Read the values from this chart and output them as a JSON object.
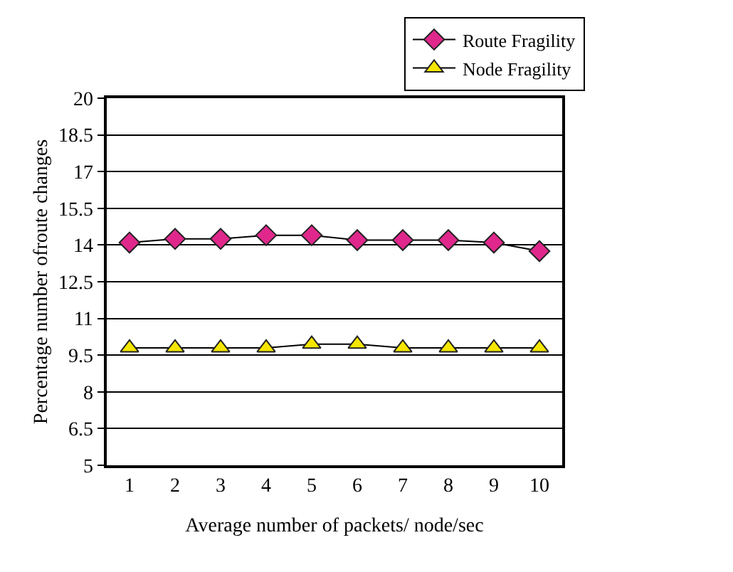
{
  "chart_data": {
    "type": "line",
    "xlabel": "Average number of packets/ node/sec",
    "ylabel": "Percentage number ofroute changes",
    "categories": [
      "1",
      "2",
      "3",
      "4",
      "5",
      "6",
      "7",
      "8",
      "9",
      "10"
    ],
    "series": [
      {
        "name": "Route Fragility",
        "color": "#e0288c",
        "marker": "diamond",
        "values": [
          14.1,
          14.25,
          14.25,
          14.4,
          14.4,
          14.2,
          14.2,
          14.2,
          14.1,
          13.75
        ]
      },
      {
        "name": "Node Fragility",
        "color": "#f5e600",
        "marker": "triangle",
        "values": [
          9.8,
          9.8,
          9.8,
          9.8,
          9.95,
          9.95,
          9.8,
          9.8,
          9.8,
          9.8
        ]
      }
    ],
    "ylim": [
      5,
      20
    ],
    "yticks": [
      5,
      6.5,
      8,
      9.5,
      11,
      12.5,
      14,
      15.5,
      17,
      18.5,
      20
    ],
    "grid": "y",
    "legend": "top right",
    "line_style": "solid"
  }
}
